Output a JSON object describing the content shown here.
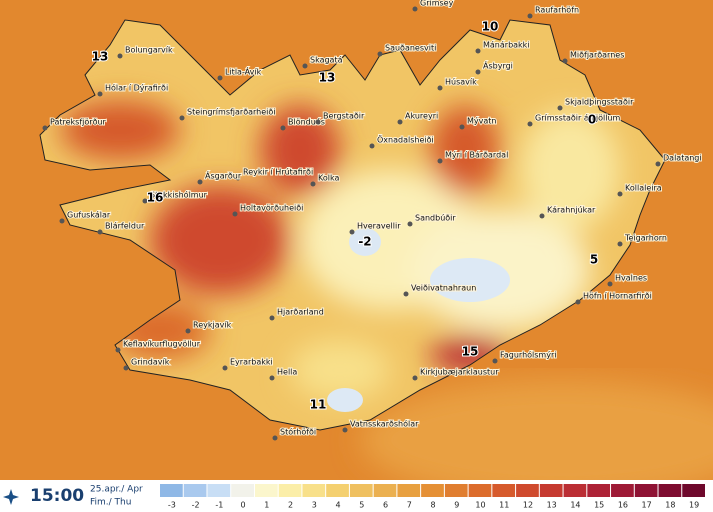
{
  "stations": [
    {
      "name": "Grímsey"
    },
    {
      "name": "Raufarhöfn"
    },
    {
      "name": "Bolungarvík"
    },
    {
      "name": "Sauðanesviti"
    },
    {
      "name": "Mánárbakki"
    },
    {
      "name": "Miðfjarðarnes"
    },
    {
      "name": "Skagatá"
    },
    {
      "name": "Litla-Ávík"
    },
    {
      "name": "Ásbyrgi"
    },
    {
      "name": "Hólar í Dýrafirði"
    },
    {
      "name": "Húsavík"
    },
    {
      "name": "Steingrímsfjarðarheiði"
    },
    {
      "name": "Blönduós"
    },
    {
      "name": "Bergstaðir"
    },
    {
      "name": "Akureyri"
    },
    {
      "name": "Skjaldþingsstaðir"
    },
    {
      "name": "Patreksfjörður"
    },
    {
      "name": "Mývatn"
    },
    {
      "name": "Grímsstaðir á Fjöllum"
    },
    {
      "name": "Öxnadalsheiði"
    },
    {
      "name": "Mýri í Bárðardal"
    },
    {
      "name": "Reykir í Hrútafirði"
    },
    {
      "name": "Dalatangi"
    },
    {
      "name": "Kolka"
    },
    {
      "name": "Ásgarður"
    },
    {
      "name": "Kollaleira"
    },
    {
      "name": "Stykkishólmur"
    },
    {
      "name": "Holtavörðuheiði"
    },
    {
      "name": "Kárahnjúkar"
    },
    {
      "name": "Gufuskálar"
    },
    {
      "name": "Sandbúðir"
    },
    {
      "name": "Blárfeldur"
    },
    {
      "name": "Hveravellir"
    },
    {
      "name": "Teigarhorn"
    },
    {
      "name": "Hvalnes"
    },
    {
      "name": "Veiðivatnahraun"
    },
    {
      "name": "Höfn í Hornarfirði"
    },
    {
      "name": "Hjarðarland"
    },
    {
      "name": "Reykjavík"
    },
    {
      "name": "Keflavíkurflugvöllur"
    },
    {
      "name": "Eyrarbakki"
    },
    {
      "name": "Fagurhólsmýri"
    },
    {
      "name": "Grindavík"
    },
    {
      "name": "Kirkjubæjarklaustur"
    },
    {
      "name": "Hella"
    },
    {
      "name": "Stórhöfði"
    },
    {
      "name": "Vatnsskarðshólar"
    }
  ],
  "contour_labels": [
    13,
    10,
    13,
    0,
    16,
    -2,
    5,
    15,
    11
  ],
  "footer": {
    "time": "15:00",
    "date": "25.apr./ Apr",
    "weekday": "Fim./ Thu"
  },
  "legend": {
    "values": [
      -3,
      -2,
      -1,
      0,
      1,
      2,
      3,
      4,
      5,
      6,
      7,
      8,
      9,
      10,
      11,
      12,
      13,
      14,
      15,
      16,
      17,
      18,
      19
    ],
    "colors": [
      "#8fb8e6",
      "#a9c9ee",
      "#c8def5",
      "#f2f2ea",
      "#fbf6cc",
      "#fbeea8",
      "#f8e08a",
      "#f4d070",
      "#efc060",
      "#ebb050",
      "#e8a040",
      "#e59035",
      "#e07e30",
      "#dc6c2c",
      "#d65a2c",
      "#cf4a2e",
      "#c63a30",
      "#bb2e34",
      "#ad2236",
      "#9e1a36",
      "#8e1234",
      "#7e0c30",
      "#6e082c"
    ]
  }
}
